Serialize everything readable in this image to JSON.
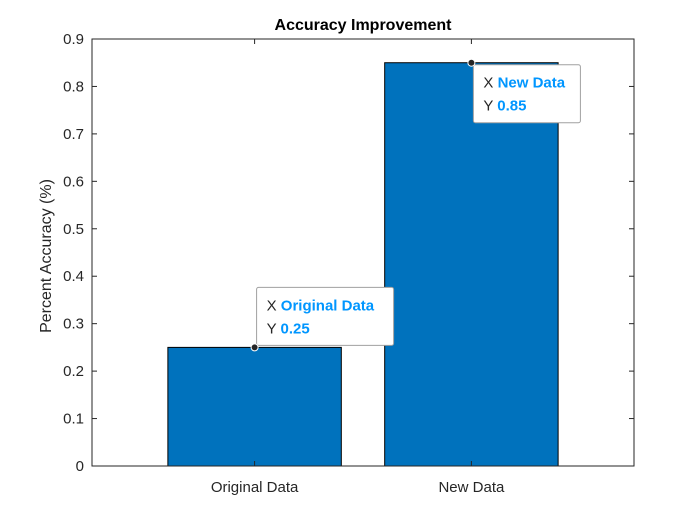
{
  "chart_data": {
    "type": "bar",
    "title": "Accuracy Improvement",
    "xlabel": "",
    "ylabel": "Percent Accuracy (%)",
    "categories": [
      "Original Data",
      "New Data"
    ],
    "values": [
      0.25,
      0.85
    ],
    "ylim": [
      0,
      0.9
    ],
    "yticks": [
      0,
      0.1,
      0.2,
      0.3,
      0.4,
      0.5,
      0.6,
      0.7,
      0.8,
      0.9
    ],
    "ytick_labels": [
      "0",
      "0.1",
      "0.2",
      "0.3",
      "0.4",
      "0.5",
      "0.6",
      "0.7",
      "0.8",
      "0.9"
    ],
    "grid": false,
    "bar_color": "#0072BD",
    "datatips": [
      {
        "x_key": "X",
        "x_value": "Original Data",
        "y_key": "Y",
        "y_value": "0.25"
      },
      {
        "x_key": "X",
        "x_value": "New Data",
        "y_key": "Y",
        "y_value": "0.85"
      }
    ],
    "datatip_value_color": "#0096FF"
  }
}
